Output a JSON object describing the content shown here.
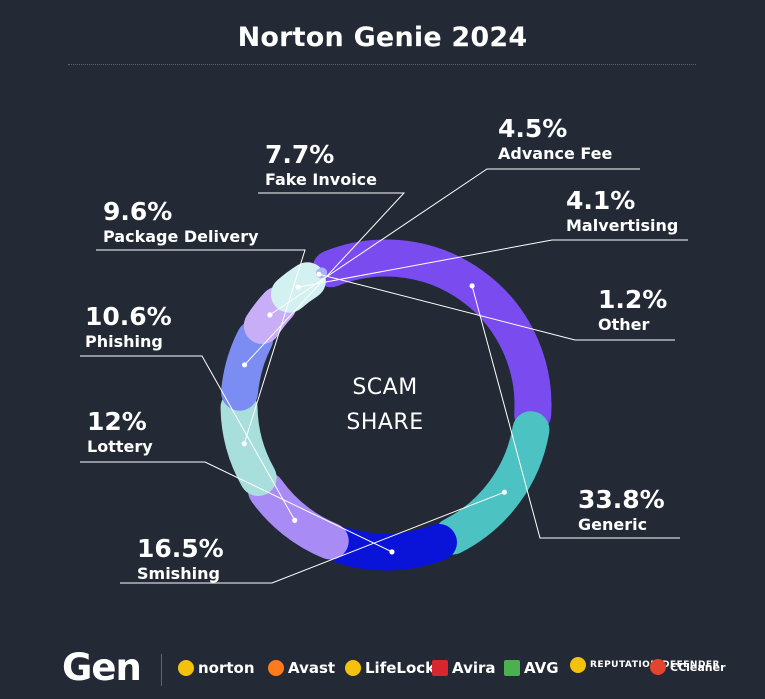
{
  "title": "Norton Genie 2024",
  "center_label": [
    "SCAM",
    "SHARE"
  ],
  "chart_data": {
    "type": "pie",
    "title": "Norton Genie 2024",
    "center_label": "SCAM SHARE",
    "slices": [
      {
        "label": "Generic",
        "value": 33.8,
        "value_label": "33.8%",
        "color": "#7a4cf0"
      },
      {
        "label": "Smishing",
        "value": 16.5,
        "value_label": "16.5%",
        "color": "#4cc2c2"
      },
      {
        "label": "Lottery",
        "value": 12,
        "value_label": "12%",
        "color": "#0a14d8"
      },
      {
        "label": "Phishing",
        "value": 10.6,
        "value_label": "10.6%",
        "color": "#a98bf5"
      },
      {
        "label": "Package Delivery",
        "value": 9.6,
        "value_label": "9.6%",
        "color": "#a8dedb"
      },
      {
        "label": "Fake Invoice",
        "value": 7.7,
        "value_label": "7.7%",
        "color": "#7b8cf3"
      },
      {
        "label": "Advance Fee",
        "value": 4.5,
        "value_label": "4.5%",
        "color": "#c8aef7"
      },
      {
        "label": "Malvertising",
        "value": 4.1,
        "value_label": "4.1%",
        "color": "#d3f1f1"
      },
      {
        "label": "Other",
        "value": 1.2,
        "value_label": "1.2%",
        "color": "#a9b4f5"
      }
    ]
  },
  "footer": {
    "gen_logo": "Gen",
    "brands": [
      {
        "name": "norton",
        "icon": "norton-check-icon",
        "color": "#f4c20d"
      },
      {
        "name": "Avast",
        "icon": "avast-icon",
        "color": "#ff7a1a"
      },
      {
        "name": "LifeLock",
        "icon": "lifelock-icon",
        "color": "#f4c20d"
      },
      {
        "name": "Avira",
        "icon": "avira-icon",
        "color": "#d8262e"
      },
      {
        "name": "AVG",
        "icon": "avg-icon",
        "color": "#4caf50"
      },
      {
        "name": "REPUTATION DEFENDER",
        "icon": "reputation-defender-icon",
        "color": "#f4c20d"
      },
      {
        "name": "CCleaner",
        "icon": "ccleaner-icon",
        "color": "#e2452e"
      }
    ]
  }
}
